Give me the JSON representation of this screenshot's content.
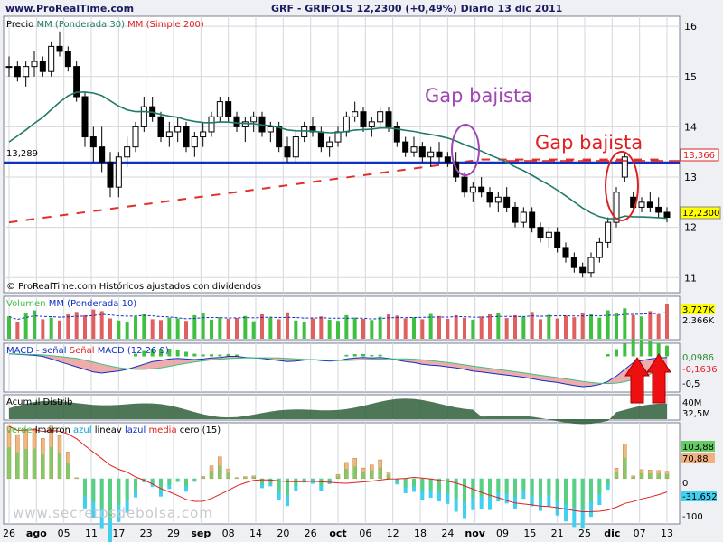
{
  "header": {
    "site": "www.ProRealTime.com",
    "title": "GRF - GRIFOLS     12,2300 (+0,49%)   Diario  13 dic 2011"
  },
  "panels": {
    "price": {
      "legend_prefix": "Precio",
      "legend_ma1": "MM (Ponderada 30)",
      "legend_ma2": "MM (Simple 200)",
      "copyright": "© ProRealTime.com  Históricos ajustados con dividendos",
      "annotation_purple": "Gap bajista",
      "annotation_red": "Gap bajista",
      "level_left_label": "13,289",
      "level_right_label": "13,366",
      "last_price_label": "12,2300",
      "yticks": [
        "16",
        "15",
        "14",
        "13",
        "12",
        "11"
      ]
    },
    "volume": {
      "legend_prefix": "Volumen",
      "legend_ma": "MM (Ponderada 10)",
      "label_last": "3.727K",
      "label_ma": "2.366K"
    },
    "macd": {
      "legend_a": "MACD - señal",
      "legend_b": "Señal",
      "legend_c": "MACD (12 26 9)",
      "label_1": "0,0986",
      "label_2": "-0,1636",
      "label_3": "-0,5"
    },
    "accum": {
      "legend": "Acumul Distrib",
      "label_1": "40M",
      "label_2": "32,5M"
    },
    "imarron": {
      "legend_prefix": "verde",
      "legend_1": "Imarron",
      "legend_2": "azul",
      "legend_3": "lineav",
      "legend_4": "lazul",
      "legend_5": "media",
      "legend_6": "cero (15)",
      "label_1": "103,88",
      "label_2": "70,88",
      "label_3": "0",
      "label_4": "-31,652",
      "label_5": "-100",
      "watermark": "www.secretosdebolsa.com"
    }
  },
  "xaxis": {
    "labels": [
      "26",
      "ago",
      "05",
      "11",
      "17",
      "23",
      "29",
      "sep",
      "08",
      "14",
      "20",
      "26",
      "oct",
      "06",
      "12",
      "18",
      "24",
      "nov",
      "09",
      "15",
      "21",
      "25",
      "dic",
      "07",
      "13"
    ]
  },
  "colors": {
    "background": "#ffffff",
    "panel_bg": "#f5f6f8",
    "grid": "#c8cad2",
    "candle": "#000000",
    "ma30": "#1f7a6a",
    "ma200": "#e0302a",
    "level_line": "#1030c0",
    "purple": "#a046b4",
    "red": "#e02020",
    "vol_up": "#40c040",
    "vol_down": "#e06060"
  },
  "chart_data": [
    {
      "type": "candlestick",
      "title": "GRF - GRIFOLS     12,2300 (+0,49%)   Diario  13 dic 2011",
      "ylim": [
        10.7,
        16.2
      ],
      "horizontal_level": 13.289,
      "ohlc": [
        [
          15.2,
          15.4,
          15.0,
          15.2
        ],
        [
          15.2,
          15.3,
          14.9,
          15.0
        ],
        [
          15.0,
          15.3,
          14.8,
          15.2
        ],
        [
          15.2,
          15.5,
          15.0,
          15.3
        ],
        [
          15.3,
          15.4,
          15.0,
          15.1
        ],
        [
          15.1,
          15.7,
          15.0,
          15.6
        ],
        [
          15.6,
          15.9,
          15.4,
          15.5
        ],
        [
          15.5,
          15.6,
          15.1,
          15.2
        ],
        [
          15.2,
          15.3,
          14.5,
          14.6
        ],
        [
          14.6,
          14.7,
          13.6,
          13.8
        ],
        [
          13.8,
          14.0,
          13.3,
          13.6
        ],
        [
          13.6,
          14.0,
          13.1,
          13.3
        ],
        [
          13.3,
          13.5,
          12.6,
          12.8
        ],
        [
          12.8,
          13.5,
          12.6,
          13.4
        ],
        [
          13.4,
          13.8,
          13.2,
          13.6
        ],
        [
          13.6,
          14.1,
          13.5,
          14.0
        ],
        [
          14.0,
          14.6,
          13.9,
          14.4
        ],
        [
          14.4,
          14.6,
          14.1,
          14.2
        ],
        [
          14.2,
          14.3,
          13.7,
          13.8
        ],
        [
          13.8,
          14.1,
          13.6,
          13.9
        ],
        [
          13.9,
          14.2,
          13.7,
          14.0
        ],
        [
          14.0,
          14.1,
          13.5,
          13.6
        ],
        [
          13.6,
          13.9,
          13.4,
          13.8
        ],
        [
          13.8,
          14.1,
          13.6,
          13.9
        ],
        [
          13.9,
          14.3,
          13.8,
          14.2
        ],
        [
          14.2,
          14.6,
          14.1,
          14.5
        ],
        [
          14.5,
          14.6,
          14.1,
          14.2
        ],
        [
          14.2,
          14.3,
          13.9,
          14.0
        ],
        [
          14.0,
          14.2,
          13.7,
          14.1
        ],
        [
          14.1,
          14.3,
          13.9,
          14.2
        ],
        [
          14.2,
          14.3,
          13.8,
          13.9
        ],
        [
          13.9,
          14.1,
          13.7,
          14.0
        ],
        [
          14.0,
          14.1,
          13.5,
          13.6
        ],
        [
          13.6,
          13.8,
          13.3,
          13.4
        ],
        [
          13.4,
          13.9,
          13.3,
          13.8
        ],
        [
          13.8,
          14.1,
          13.7,
          14.0
        ],
        [
          14.0,
          14.2,
          13.8,
          13.9
        ],
        [
          13.9,
          14.0,
          13.5,
          13.6
        ],
        [
          13.6,
          13.8,
          13.4,
          13.7
        ],
        [
          13.7,
          14.0,
          13.6,
          13.9
        ],
        [
          13.9,
          14.3,
          13.8,
          14.2
        ],
        [
          14.2,
          14.5,
          14.1,
          14.3
        ],
        [
          14.3,
          14.4,
          13.9,
          14.0
        ],
        [
          14.0,
          14.2,
          13.8,
          14.1
        ],
        [
          14.1,
          14.4,
          14.0,
          14.3
        ],
        [
          14.3,
          14.4,
          13.9,
          14.0
        ],
        [
          14.0,
          14.1,
          13.6,
          13.7
        ],
        [
          13.7,
          13.8,
          13.4,
          13.5
        ],
        [
          13.5,
          13.8,
          13.4,
          13.6
        ],
        [
          13.6,
          13.7,
          13.3,
          13.4
        ],
        [
          13.4,
          13.6,
          13.2,
          13.5
        ],
        [
          13.5,
          13.7,
          13.3,
          13.4
        ],
        [
          13.4,
          13.5,
          13.2,
          13.3
        ],
        [
          13.3,
          13.5,
          12.9,
          13.0
        ],
        [
          13.0,
          13.1,
          12.6,
          12.7
        ],
        [
          12.7,
          12.9,
          12.5,
          12.8
        ],
        [
          12.8,
          13.0,
          12.6,
          12.7
        ],
        [
          12.7,
          12.8,
          12.4,
          12.5
        ],
        [
          12.5,
          12.7,
          12.3,
          12.6
        ],
        [
          12.6,
          12.8,
          12.3,
          12.4
        ],
        [
          12.4,
          12.5,
          12.0,
          12.1
        ],
        [
          12.1,
          12.4,
          12.0,
          12.3
        ],
        [
          12.3,
          12.4,
          11.9,
          12.0
        ],
        [
          12.0,
          12.1,
          11.7,
          11.8
        ],
        [
          11.8,
          12.0,
          11.6,
          11.9
        ],
        [
          11.9,
          12.0,
          11.5,
          11.6
        ],
        [
          11.6,
          11.7,
          11.3,
          11.4
        ],
        [
          11.4,
          11.5,
          11.1,
          11.2
        ],
        [
          11.2,
          11.3,
          11.0,
          11.1
        ],
        [
          11.1,
          11.5,
          11.0,
          11.4
        ],
        [
          11.4,
          11.8,
          11.3,
          11.7
        ],
        [
          11.7,
          12.2,
          11.6,
          12.1
        ],
        [
          12.1,
          12.8,
          12.0,
          12.7
        ],
        [
          13.0,
          13.5,
          12.9,
          13.4
        ],
        [
          12.6,
          12.7,
          12.3,
          12.4
        ],
        [
          12.4,
          12.6,
          12.3,
          12.5
        ],
        [
          12.5,
          12.7,
          12.3,
          12.4
        ],
        [
          12.4,
          12.6,
          12.2,
          12.3
        ],
        [
          12.3,
          12.4,
          12.1,
          12.2
        ]
      ]
    },
    {
      "type": "bar",
      "title": "Volumen",
      "series": [
        {
          "name": "Volumen",
          "values": [
            55,
            40,
            62,
            70,
            48,
            52,
            45,
            60,
            66,
            58,
            72,
            68,
            50,
            45,
            42,
            55,
            60,
            48,
            46,
            52,
            50,
            44,
            58,
            62,
            47,
            53,
            49,
            51,
            56,
            43,
            60,
            52,
            48,
            65,
            45,
            41,
            50,
            55,
            47,
            44,
            58,
            52,
            49,
            46,
            54,
            60,
            57,
            50,
            53,
            48,
            61,
            56,
            49,
            58,
            52,
            47,
            55,
            60,
            63,
            51,
            58,
            54,
            66,
            48,
            59,
            50,
            57,
            53,
            64,
            60,
            52,
            70,
            62,
            75,
            58,
            55,
            68,
            60,
            85
          ]
        }
      ]
    },
    {
      "type": "line",
      "title": "MACD (12 26 9)",
      "series": [
        {
          "name": "MACD",
          "values": [
            0.05,
            0.04,
            0.03,
            0.02,
            0.0,
            -0.05,
            -0.1,
            -0.15,
            -0.2,
            -0.25,
            -0.3,
            -0.32,
            -0.3,
            -0.28,
            -0.25,
            -0.2,
            -0.15,
            -0.1,
            -0.08,
            -0.05,
            -0.04,
            -0.05,
            -0.06,
            -0.05,
            -0.03,
            -0.02,
            0.0,
            0.0,
            -0.02,
            -0.03,
            -0.04,
            -0.06,
            -0.08,
            -0.1,
            -0.09,
            -0.07,
            -0.06,
            -0.08,
            -0.09,
            -0.08,
            -0.05,
            -0.03,
            -0.02,
            -0.03,
            -0.02,
            -0.04,
            -0.07,
            -0.1,
            -0.12,
            -0.15,
            -0.17,
            -0.18,
            -0.2,
            -0.22,
            -0.25,
            -0.28,
            -0.3,
            -0.32,
            -0.34,
            -0.36,
            -0.38,
            -0.4,
            -0.43,
            -0.46,
            -0.48,
            -0.5,
            -0.53,
            -0.56,
            -0.58,
            -0.57,
            -0.54,
            -0.48,
            -0.38,
            -0.25,
            -0.12,
            -0.08,
            -0.05,
            -0.03,
            -0.02,
            0.0
          ]
        }
      ]
    }
  ]
}
